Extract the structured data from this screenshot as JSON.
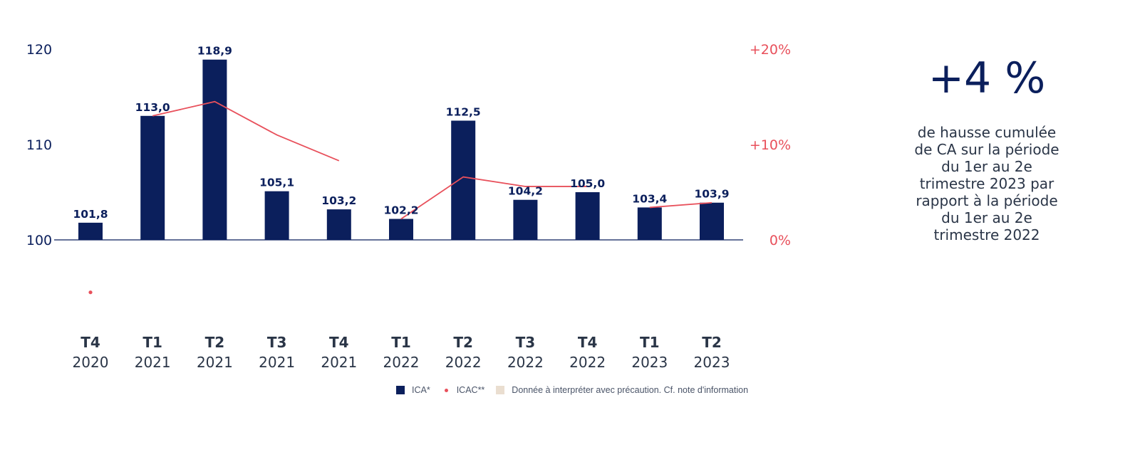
{
  "chart_data": {
    "type": "bar",
    "categories": [
      {
        "q": "T4",
        "y": "2020"
      },
      {
        "q": "T1",
        "y": "2021"
      },
      {
        "q": "T2",
        "y": "2021"
      },
      {
        "q": "T3",
        "y": "2021"
      },
      {
        "q": "T4",
        "y": "2021"
      },
      {
        "q": "T1",
        "y": "2022"
      },
      {
        "q": "T2",
        "y": "2022"
      },
      {
        "q": "T3",
        "y": "2022"
      },
      {
        "q": "T4",
        "y": "2022"
      },
      {
        "q": "T1",
        "y": "2023"
      },
      {
        "q": "T2",
        "y": "2023"
      }
    ],
    "series": [
      {
        "name": "ICA*",
        "type": "bar",
        "axis": "left",
        "values": [
          101.8,
          113.0,
          118.9,
          105.1,
          103.2,
          102.2,
          112.5,
          104.2,
          105.0,
          103.4,
          103.9
        ],
        "value_labels": [
          "101,8",
          "113,0",
          "118,9",
          "105,1",
          "103,2",
          "102,2",
          "112,5",
          "",
          "105,0",
          "103,4",
          "103,9"
        ],
        "color": "#0b1f5c"
      },
      {
        "name": "ICAC**",
        "type": "line",
        "axis": "right",
        "values": [
          -5.5,
          13.0,
          14.5,
          11.0,
          8.3,
          2.2,
          6.6,
          5.6,
          5.6,
          3.4,
          3.9
        ],
        "segments": [
          [
            0,
            0
          ],
          [
            1,
            4
          ],
          [
            5,
            8
          ],
          [
            9,
            10
          ]
        ],
        "color": "#e8505b"
      }
    ],
    "overlay_labels": [
      {
        "index": 7,
        "text": "104,2"
      }
    ],
    "y_left": {
      "ticks": [
        "100",
        "110",
        "120"
      ],
      "tick_values": [
        100,
        110,
        120
      ],
      "range": [
        100,
        120
      ]
    },
    "y_right": {
      "ticks": [
        "0%",
        "+10%",
        "+20%"
      ],
      "tick_values": [
        0,
        10,
        20
      ],
      "range": [
        0,
        20
      ]
    },
    "colors": {
      "bar": "#0b1f5c",
      "line": "#e8505b",
      "caution": "#eaded0",
      "axis_text": "#2a3547"
    }
  },
  "legend": [
    {
      "label": "ICA*",
      "kind": "square",
      "color": "#0b1f5c"
    },
    {
      "label": "ICAC**",
      "kind": "dot",
      "color": "#e8505b"
    },
    {
      "label": "Donnée à interpréter avec précaution. Cf. note d'information",
      "kind": "square",
      "color": "#eaded0"
    }
  ],
  "side": {
    "headline": "+4 %",
    "text": "de hausse cumulée de CA sur la période du 1er au 2e trimestre 2023 par rapport à la période du 1er au 2e trimestre 2022"
  }
}
